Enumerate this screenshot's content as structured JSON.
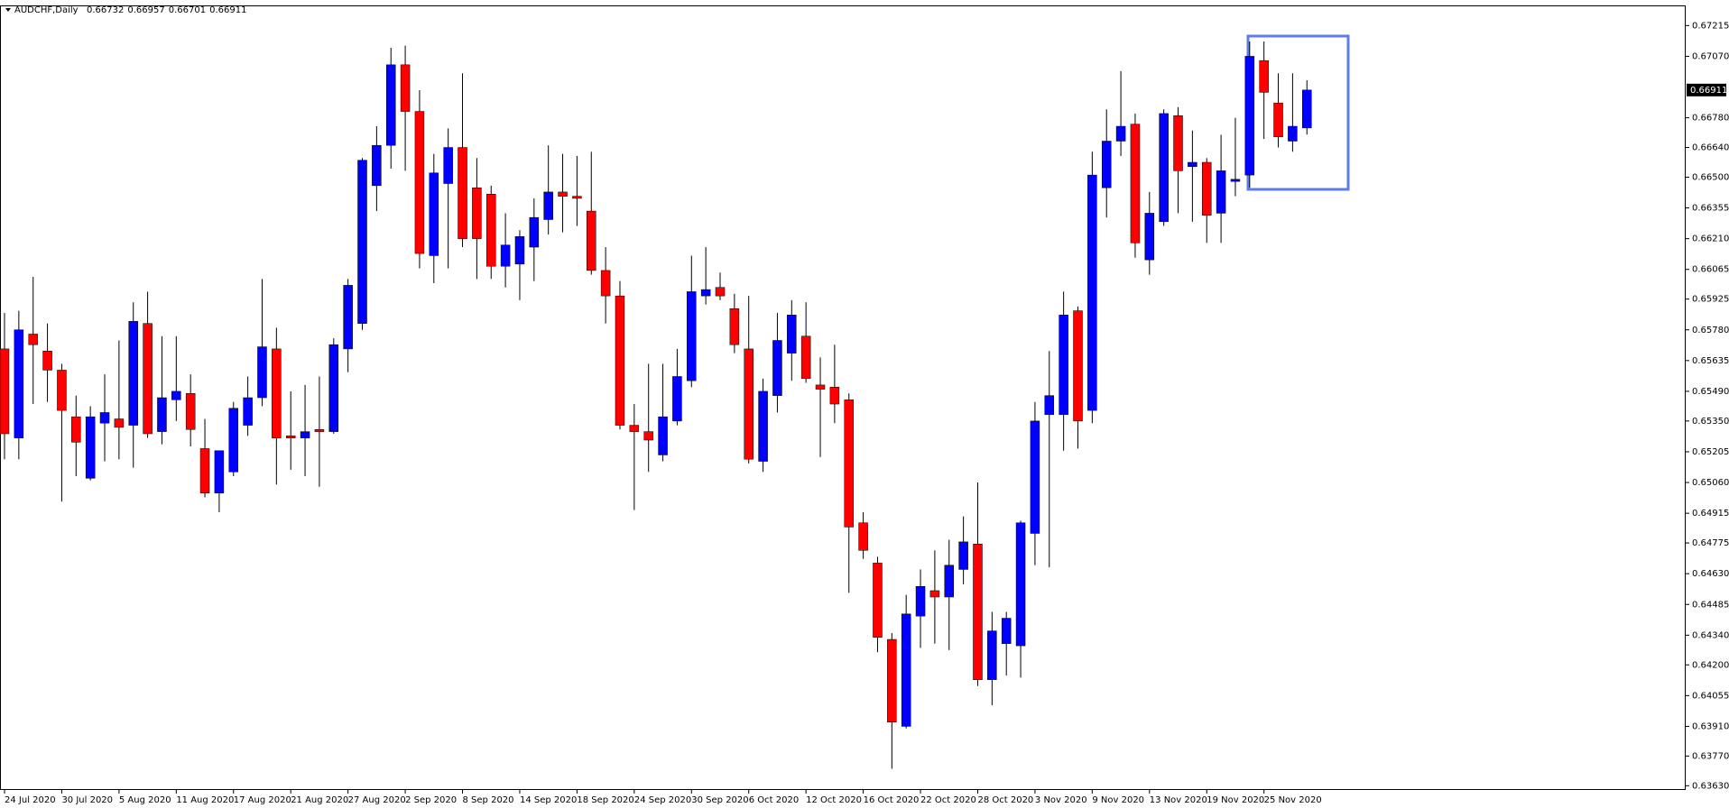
{
  "chart_data": {
    "type": "candlestick",
    "title": "AUDCHF,Daily",
    "header_values": [
      0.66732,
      0.66957,
      0.66701,
      0.66911
    ],
    "last_price": 0.66911,
    "up_color": "#0000ff",
    "down_color": "#ff0000",
    "wick_color": "#000000",
    "grid": false,
    "categories": [
      "24 Jul 2020",
      null,
      null,
      null,
      "30 Jul 2020",
      null,
      null,
      null,
      "5 Aug 2020",
      null,
      null,
      null,
      "11 Aug 2020",
      null,
      null,
      null,
      "17 Aug 2020",
      null,
      null,
      null,
      "21 Aug 2020",
      null,
      null,
      null,
      "27 Aug 2020",
      null,
      null,
      null,
      "2 Sep 2020",
      null,
      null,
      null,
      "8 Sep 2020",
      null,
      null,
      null,
      "14 Sep 2020",
      null,
      null,
      null,
      "18 Sep 2020",
      null,
      null,
      null,
      "24 Sep 2020",
      null,
      null,
      null,
      "30 Sep 2020",
      null,
      null,
      null,
      "6 Oct 2020",
      null,
      null,
      null,
      "12 Oct 2020",
      null,
      null,
      null,
      "16 Oct 2020",
      null,
      null,
      null,
      "22 Oct 2020",
      null,
      null,
      null,
      "28 Oct 2020",
      null,
      null,
      null,
      "3 Nov 2020",
      null,
      null,
      null,
      "9 Nov 2020",
      null,
      null,
      null,
      "13 Nov 2020",
      null,
      null,
      null,
      "19 Nov 2020",
      null,
      null,
      null,
      "25 Nov 2020",
      null,
      null,
      null
    ],
    "open": [
      0.6569,
      0.6527,
      0.6576,
      0.6568,
      0.6559,
      0.6537,
      0.6508,
      0.6534,
      0.6536,
      0.6533,
      0.6581,
      0.653,
      0.6545,
      0.6548,
      0.6522,
      0.6501,
      0.6511,
      0.6533,
      0.6546,
      0.6569,
      0.6528,
      0.6527,
      0.6531,
      0.653,
      0.6569,
      0.6581,
      0.6646,
      0.6665,
      0.6703,
      0.6681,
      0.6613,
      0.6647,
      0.6664,
      0.6645,
      0.6642,
      0.6608,
      0.6609,
      0.6617,
      0.663,
      0.6643,
      0.6641,
      0.6634,
      0.6606,
      0.6594,
      0.6533,
      0.653,
      0.6519,
      0.6535,
      0.6554,
      0.6594,
      0.6598,
      0.6588,
      0.6569,
      0.6516,
      0.6547,
      0.6567,
      0.6575,
      0.6552,
      0.6551,
      0.6545,
      0.6487,
      0.6468,
      0.6432,
      0.6391,
      0.6443,
      0.6455,
      0.6452,
      0.6465,
      0.6477,
      0.6413,
      0.643,
      0.6429,
      0.6482,
      0.6538,
      0.6538,
      0.6587,
      0.654,
      0.6645,
      0.6667,
      0.6675,
      0.6611,
      0.6629,
      0.6679,
      0.6655,
      0.6657,
      0.6633,
      0.6648,
      0.6651,
      0.6705,
      0.6685,
      0.6667,
      0.66732
    ],
    "high": [
      0.6586,
      0.6587,
      0.6603,
      0.6581,
      0.6562,
      0.6547,
      0.6542,
      0.6557,
      0.6573,
      0.6591,
      0.6596,
      0.6575,
      0.6575,
      0.6557,
      0.6536,
      0.6521,
      0.6544,
      0.6556,
      0.6602,
      0.6579,
      0.6549,
      0.6552,
      0.6556,
      0.6574,
      0.6602,
      0.6659,
      0.6674,
      0.6711,
      0.6712,
      0.6691,
      0.6661,
      0.6673,
      0.6699,
      0.6659,
      0.6646,
      0.6633,
      0.6625,
      0.664,
      0.6665,
      0.6661,
      0.666,
      0.6662,
      0.6617,
      0.6601,
      0.6543,
      0.6562,
      0.6562,
      0.6569,
      0.6613,
      0.6617,
      0.6605,
      0.6595,
      0.6594,
      0.6555,
      0.6586,
      0.6592,
      0.6591,
      0.6565,
      0.6571,
      0.6548,
      0.6492,
      0.6471,
      0.6435,
      0.6453,
      0.6465,
      0.6474,
      0.6479,
      0.649,
      0.6506,
      0.6445,
      0.6445,
      0.6488,
      0.6544,
      0.6568,
      0.6596,
      0.6589,
      0.6662,
      0.6682,
      0.67,
      0.668,
      0.6643,
      0.6682,
      0.6683,
      0.6672,
      0.6659,
      0.667,
      0.6678,
      0.6714,
      0.6714,
      0.6699,
      0.6699,
      0.66957
    ],
    "low": [
      0.6517,
      0.6517,
      0.6543,
      0.6544,
      0.6497,
      0.6509,
      0.6507,
      0.6516,
      0.6517,
      0.6513,
      0.6527,
      0.6524,
      0.6535,
      0.6523,
      0.6499,
      0.6492,
      0.6509,
      0.6528,
      0.6542,
      0.6505,
      0.6512,
      0.6509,
      0.6504,
      0.6529,
      0.6558,
      0.6578,
      0.6634,
      0.6654,
      0.6653,
      0.6607,
      0.66,
      0.6607,
      0.6617,
      0.6602,
      0.6602,
      0.6598,
      0.6592,
      0.6601,
      0.6623,
      0.6624,
      0.6627,
      0.6604,
      0.6581,
      0.6531,
      0.6493,
      0.6511,
      0.6516,
      0.6533,
      0.6551,
      0.659,
      0.6592,
      0.6567,
      0.6515,
      0.6511,
      0.6539,
      0.6554,
      0.6553,
      0.6518,
      0.6534,
      0.6454,
      0.647,
      0.6426,
      0.6371,
      0.639,
      0.6428,
      0.643,
      0.6427,
      0.6458,
      0.641,
      0.6401,
      0.6415,
      0.6414,
      0.6467,
      0.6466,
      0.6521,
      0.6522,
      0.6534,
      0.6631,
      0.666,
      0.6612,
      0.6604,
      0.6627,
      0.6633,
      0.6629,
      0.6619,
      0.6619,
      0.6641,
      0.6645,
      0.6668,
      0.6664,
      0.6662,
      0.66701
    ],
    "close": [
      0.6529,
      0.6578,
      0.6571,
      0.6559,
      0.654,
      0.6525,
      0.6537,
      0.6539,
      0.6532,
      0.6582,
      0.6529,
      0.6546,
      0.6549,
      0.6531,
      0.6501,
      0.6521,
      0.6541,
      0.6546,
      0.657,
      0.6527,
      0.6527,
      0.653,
      0.653,
      0.6571,
      0.6599,
      0.6658,
      0.6665,
      0.6703,
      0.6681,
      0.6614,
      0.6652,
      0.6664,
      0.6621,
      0.6621,
      0.6608,
      0.6618,
      0.6622,
      0.6631,
      0.6643,
      0.6641,
      0.664,
      0.6606,
      0.6594,
      0.6533,
      0.653,
      0.6526,
      0.6537,
      0.6556,
      0.6596,
      0.6597,
      0.6594,
      0.6571,
      0.6517,
      0.6549,
      0.6573,
      0.6585,
      0.6555,
      0.655,
      0.6543,
      0.6485,
      0.6474,
      0.6433,
      0.6393,
      0.6444,
      0.6457,
      0.6452,
      0.6467,
      0.6478,
      0.6413,
      0.6436,
      0.6442,
      0.6487,
      0.6535,
      0.6547,
      0.6585,
      0.6535,
      0.6651,
      0.6667,
      0.6674,
      0.6619,
      0.6633,
      0.668,
      0.6653,
      0.6657,
      0.6632,
      0.6653,
      0.6649,
      0.6707,
      0.669,
      0.6669,
      0.6674,
      0.66911
    ],
    "ylim": [
      0.6361,
      0.6731
    ],
    "yticks": [
      0.67215,
      {
        "value": 0.6707,
        "label": "0.67070"
      },
      {
        "value": 0.6678,
        "label": "0.66780"
      },
      {
        "value": 0.6664,
        "label": "0.66640"
      },
      {
        "value": 0.665,
        "label": "0.66500"
      },
      0.66355,
      {
        "value": 0.6621,
        "label": "0.66210"
      },
      0.66065,
      0.65925,
      {
        "value": 0.6578,
        "label": "0.65780"
      },
      0.65635,
      {
        "value": 0.6549,
        "label": "0.65490"
      },
      {
        "value": 0.6535,
        "label": "0.65350"
      },
      0.65205,
      {
        "value": 0.6506,
        "label": "0.65060"
      },
      0.64915,
      0.64775,
      {
        "value": 0.6463,
        "label": "0.64630"
      },
      0.64485,
      {
        "value": 0.6434,
        "label": "0.64340"
      },
      {
        "value": 0.642,
        "label": "0.64200"
      },
      0.64055,
      {
        "value": 0.6391,
        "label": "0.63910"
      },
      {
        "value": 0.6377,
        "label": "0.63770"
      },
      {
        "value": 0.6363,
        "label": "0.63630"
      }
    ]
  }
}
